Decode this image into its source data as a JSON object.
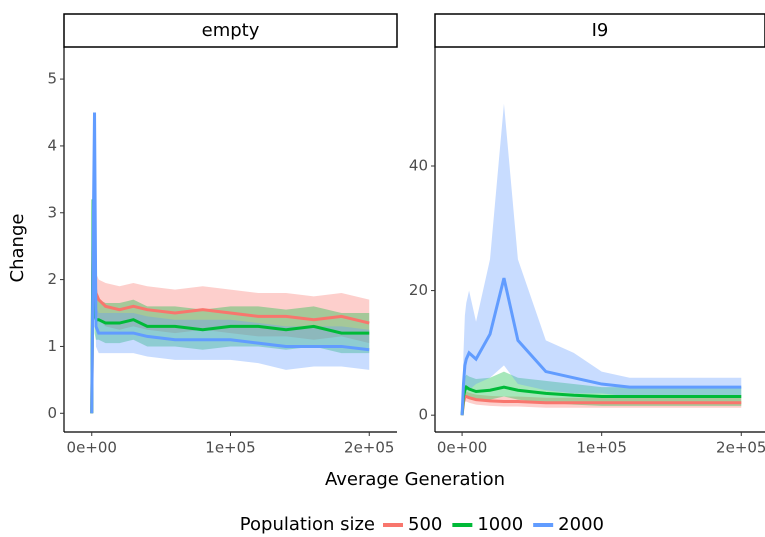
{
  "chart_data": {
    "type": "line",
    "x_label": "Average Generation",
    "y_label": "Change",
    "legend_title": "Population size",
    "legend_position": "bottom",
    "series": [
      {
        "name": "500",
        "color": "#F8766D"
      },
      {
        "name": "1000",
        "color": "#00BA38"
      },
      {
        "name": "2000",
        "color": "#619CFF"
      }
    ],
    "facets": [
      {
        "title": "empty",
        "x": [
          0,
          1000,
          2000,
          3000,
          5000,
          10000,
          20000,
          30000,
          40000,
          60000,
          80000,
          100000,
          120000,
          140000,
          160000,
          180000,
          200000
        ],
        "xlim": [
          -20000,
          220000
        ],
        "xticks": [
          {
            "value": 0,
            "label": "0e+00"
          },
          {
            "value": 100000,
            "label": "1e+05"
          },
          {
            "value": 200000,
            "label": "2e+05"
          }
        ],
        "ylim": [
          -0.28,
          5.48
        ],
        "yticks": [
          0,
          1,
          2,
          3,
          4,
          5
        ],
        "values": [
          [
            0,
            2.8,
            2.0,
            1.8,
            1.7,
            1.6,
            1.55,
            1.6,
            1.55,
            1.5,
            1.55,
            1.5,
            1.45,
            1.45,
            1.4,
            1.45,
            1.35
          ],
          [
            0,
            3.2,
            1.5,
            1.4,
            1.4,
            1.35,
            1.35,
            1.4,
            1.3,
            1.3,
            1.25,
            1.3,
            1.3,
            1.25,
            1.3,
            1.2,
            1.2
          ],
          [
            0,
            2.5,
            4.5,
            1.3,
            1.2,
            1.2,
            1.2,
            1.2,
            1.15,
            1.1,
            1.1,
            1.1,
            1.05,
            1.0,
            1.0,
            1.0,
            0.95
          ]
        ],
        "lower": [
          [
            0,
            2.5,
            1.7,
            1.5,
            1.4,
            1.3,
            1.25,
            1.3,
            1.25,
            1.2,
            1.25,
            1.2,
            1.15,
            1.15,
            1.1,
            1.15,
            1.05
          ],
          [
            0,
            2.9,
            1.2,
            1.1,
            1.1,
            1.05,
            1.05,
            1.1,
            1.0,
            1.0,
            0.95,
            1.0,
            1.0,
            0.95,
            1.0,
            0.9,
            0.9
          ],
          [
            0,
            2.2,
            4.2,
            1.0,
            0.9,
            0.9,
            0.9,
            0.9,
            0.85,
            0.8,
            0.8,
            0.8,
            0.75,
            0.65,
            0.7,
            0.7,
            0.65
          ]
        ],
        "upper": [
          [
            0,
            3.0,
            2.3,
            2.1,
            2.0,
            1.95,
            1.9,
            1.95,
            1.9,
            1.85,
            1.9,
            1.85,
            1.8,
            1.8,
            1.75,
            1.8,
            1.7
          ],
          [
            0,
            3.3,
            1.8,
            1.7,
            1.7,
            1.65,
            1.65,
            1.7,
            1.6,
            1.6,
            1.55,
            1.6,
            1.6,
            1.55,
            1.6,
            1.5,
            1.5
          ],
          [
            0,
            2.7,
            4.5,
            1.6,
            1.5,
            1.5,
            1.5,
            1.5,
            1.45,
            1.4,
            1.4,
            1.4,
            1.35,
            1.3,
            1.3,
            1.3,
            1.25
          ]
        ]
      },
      {
        "title": "I9",
        "x": [
          0,
          1000,
          2000,
          3000,
          5000,
          10000,
          20000,
          30000,
          40000,
          60000,
          80000,
          100000,
          120000,
          140000,
          160000,
          180000,
          200000
        ],
        "xlim": [
          -19400,
          217000
        ],
        "xticks": [
          {
            "value": 0,
            "label": "0e+00"
          },
          {
            "value": 100000,
            "label": "1e+05"
          },
          {
            "value": 200000,
            "label": "2e+05"
          }
        ],
        "ylim": [
          -2.7,
          59.1
        ],
        "yticks": [
          0,
          20,
          40
        ],
        "values": [
          [
            0,
            2,
            3,
            3,
            2.8,
            2.5,
            2.3,
            2.2,
            2.2,
            2.0,
            2.0,
            2.0,
            2.0,
            2.0,
            2.0,
            2.0,
            2.0
          ],
          [
            0,
            3,
            4,
            4.5,
            4.2,
            3.8,
            4,
            4.5,
            4,
            3.5,
            3.2,
            3,
            3,
            3,
            3,
            3,
            3
          ],
          [
            0,
            5,
            8,
            9,
            10,
            9,
            13,
            22,
            12,
            7,
            6,
            5,
            4.5,
            4.5,
            4.5,
            4.5,
            4.5
          ]
        ],
        "lower": [
          [
            0,
            1.2,
            2.2,
            2.2,
            2,
            1.7,
            1.5,
            1.4,
            1.4,
            1.2,
            1.2,
            1.2,
            1.2,
            1.2,
            1.2,
            1.2,
            1.2
          ],
          [
            0,
            1.5,
            2.5,
            3,
            2.7,
            2.3,
            2.5,
            3,
            2.5,
            2,
            1.7,
            1.5,
            1.5,
            1.5,
            1.5,
            1.5,
            1.5
          ],
          [
            0,
            1,
            3,
            4,
            4,
            5,
            6,
            8,
            5,
            4,
            3.5,
            3.5,
            3,
            3,
            3,
            3,
            3
          ]
        ],
        "upper": [
          [
            0,
            2.8,
            3.8,
            3.8,
            3.6,
            3.3,
            3.1,
            3,
            3,
            2.8,
            2.8,
            2.8,
            2.8,
            2.8,
            2.8,
            2.8,
            2.8
          ],
          [
            0,
            5,
            6,
            6.5,
            6.2,
            5.8,
            6,
            7,
            6,
            5.5,
            5,
            4.5,
            4.5,
            4.5,
            4.5,
            4.5,
            4.5
          ],
          [
            0,
            10,
            16,
            18,
            20,
            15,
            25,
            50,
            25,
            12,
            10,
            7,
            6,
            6,
            6,
            6,
            6
          ]
        ]
      }
    ]
  }
}
